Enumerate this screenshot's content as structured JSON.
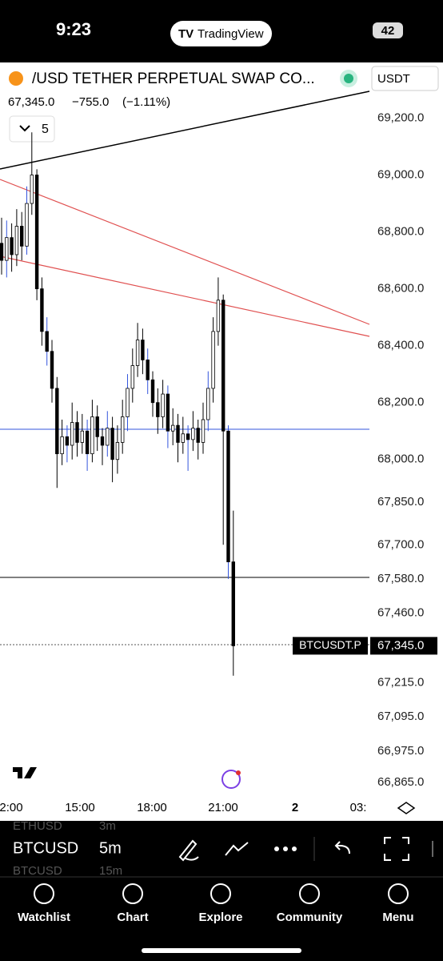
{
  "status_bar": {
    "time": "9:23",
    "app": "TradingView",
    "battery": "42"
  },
  "header": {
    "symbol": "/USD TETHER PERPETUAL SWAP CO...",
    "currency": "USDT",
    "price": "67,345.0",
    "change": "−755.0",
    "change_pct": "(−1.11%)",
    "indicator_count": "5"
  },
  "chart": {
    "type": "candlestick",
    "ylim": [
      66800,
      69390
    ],
    "yticks": [
      {
        "value": 69200,
        "label": "69,200.0"
      },
      {
        "value": 69000,
        "label": "69,000.0"
      },
      {
        "value": 68800,
        "label": "68,800.0"
      },
      {
        "value": 68600,
        "label": "68,600.0"
      },
      {
        "value": 68400,
        "label": "68,400.0"
      },
      {
        "value": 68200,
        "label": "68,200.0"
      },
      {
        "value": 68000,
        "label": "68,000.0"
      },
      {
        "value": 67850,
        "label": "67,850.0"
      },
      {
        "value": 67700,
        "label": "67,700.0"
      },
      {
        "value": 67580,
        "label": "67,580.0"
      },
      {
        "value": 67460,
        "label": "67,460.0"
      },
      {
        "value": 67345,
        "label": "67,345.0"
      },
      {
        "value": 67215,
        "label": "67,215.0"
      },
      {
        "value": 67095,
        "label": "67,095.0"
      },
      {
        "value": 66975,
        "label": "66,975.0"
      },
      {
        "value": 66865,
        "label": "66,865.0"
      }
    ],
    "xticks": [
      "2:00",
      "15:00",
      "18:00",
      "21:00",
      "2",
      "03:"
    ],
    "candles": [
      [
        68760,
        68850,
        68650,
        68700
      ],
      [
        68700,
        68840,
        68640,
        68780
      ],
      [
        68780,
        68830,
        68660,
        68720
      ],
      [
        68720,
        68880,
        68680,
        68820
      ],
      [
        68820,
        68870,
        68700,
        68750
      ],
      [
        68750,
        68960,
        68720,
        68900
      ],
      [
        68900,
        69150,
        68860,
        69000
      ],
      [
        69000,
        69020,
        68560,
        68600
      ],
      [
        68600,
        68640,
        68400,
        68450
      ],
      [
        68450,
        68500,
        68330,
        68380
      ],
      [
        68380,
        68420,
        68200,
        68250
      ],
      [
        68250,
        68290,
        67900,
        68020
      ],
      [
        68020,
        68140,
        67980,
        68080
      ],
      [
        68080,
        68120,
        67990,
        68050
      ],
      [
        68050,
        68200,
        68000,
        68130
      ],
      [
        68130,
        68170,
        68010,
        68060
      ],
      [
        68060,
        68160,
        68020,
        68100
      ],
      [
        68100,
        68140,
        67960,
        68020
      ],
      [
        68020,
        68210,
        67990,
        68150
      ],
      [
        68150,
        68190,
        68030,
        68080
      ],
      [
        68080,
        68110,
        67980,
        68050
      ],
      [
        68050,
        68170,
        68010,
        68110
      ],
      [
        68110,
        68150,
        67920,
        68000
      ],
      [
        68000,
        68120,
        67950,
        68060
      ],
      [
        68060,
        68210,
        68020,
        68150
      ],
      [
        68150,
        68300,
        68100,
        68250
      ],
      [
        68250,
        68390,
        68200,
        68330
      ],
      [
        68330,
        68480,
        68290,
        68420
      ],
      [
        68420,
        68460,
        68300,
        68350
      ],
      [
        68350,
        68390,
        68230,
        68280
      ],
      [
        68280,
        68310,
        68150,
        68200
      ],
      [
        68200,
        68250,
        68090,
        68150
      ],
      [
        68150,
        68280,
        68110,
        68230
      ],
      [
        68230,
        68260,
        68040,
        68100
      ],
      [
        68100,
        68180,
        68050,
        68120
      ],
      [
        68120,
        68160,
        67990,
        68060
      ],
      [
        68060,
        68150,
        68020,
        68090
      ],
      [
        68090,
        68120,
        67960,
        68070
      ],
      [
        68070,
        68170,
        68030,
        68110
      ],
      [
        68110,
        68140,
        68000,
        68060
      ],
      [
        68060,
        68200,
        68020,
        68140
      ],
      [
        68140,
        68310,
        68100,
        68250
      ],
      [
        68250,
        68500,
        68200,
        68450
      ],
      [
        68450,
        68640,
        68400,
        68560
      ],
      [
        68560,
        68580,
        67700,
        68100
      ],
      [
        68100,
        68120,
        67580,
        67640
      ],
      [
        67640,
        67820,
        67240,
        67345
      ]
    ],
    "last_price": {
      "symbol": "BTCUSDT.P",
      "label": "67,345.0",
      "value": 67345
    }
  },
  "symbol_bar": [
    {
      "symbol": "ETHUSD",
      "interval": "3m"
    },
    {
      "symbol": "BTCUSD",
      "interval": "5m"
    },
    {
      "symbol": "BTCUSD",
      "interval": "15m"
    }
  ],
  "tabs": [
    "Watchlist",
    "Chart",
    "Explore",
    "Community",
    "Menu"
  ]
}
